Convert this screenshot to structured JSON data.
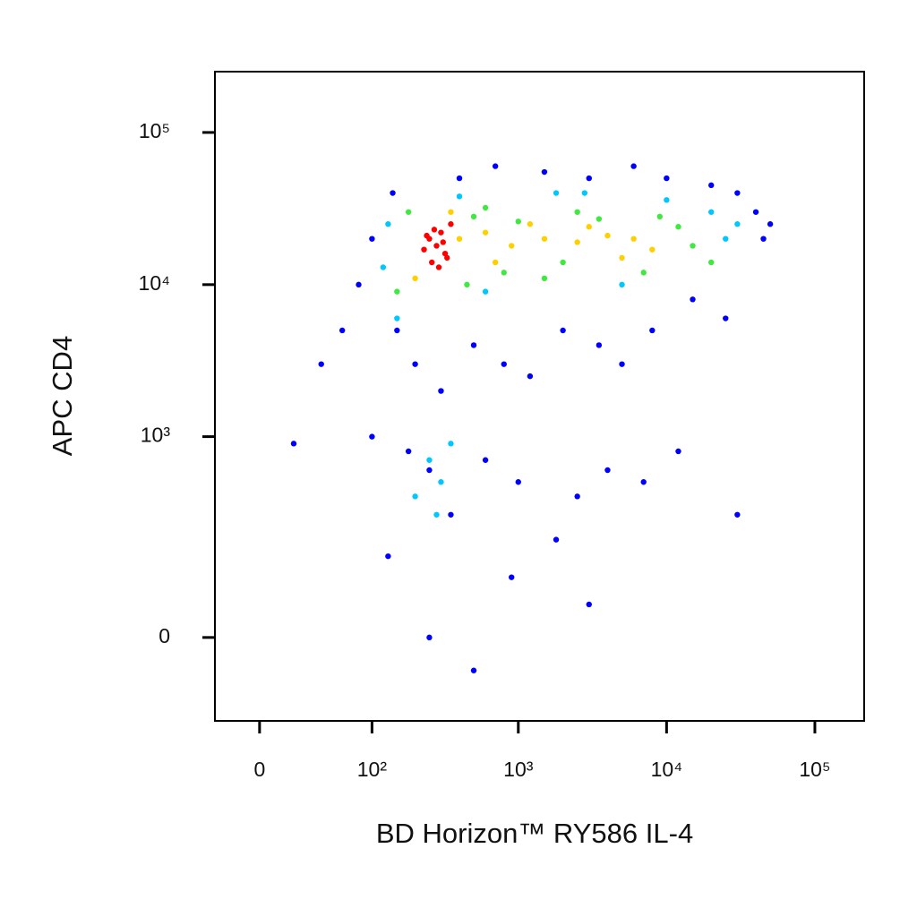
{
  "chart_data": {
    "type": "scatter",
    "x_label": "BD Horizon™ RY586 IL-4",
    "y_label": "APC CD4",
    "scale": "biexponential",
    "xlim": [
      -27,
      215000
    ],
    "ylim": [
      -156,
      251000
    ],
    "xticks": [
      0,
      {
        "value": 100,
        "label": "10²"
      },
      {
        "value": 1000,
        "label": "10³"
      },
      {
        "value": 10000,
        "label": "10⁴"
      },
      {
        "value": 100000,
        "label": "10⁵"
      }
    ],
    "yticks": [
      0,
      {
        "value": 1000,
        "label": "10³"
      },
      {
        "value": 10000,
        "label": "10⁴"
      },
      {
        "value": 100000,
        "label": "10⁵"
      }
    ],
    "series": [
      {
        "color": "#0000ff",
        "x": [
          80,
          100,
          60,
          140,
          400,
          700,
          1500,
          3000,
          6000,
          10000,
          20000,
          30000,
          40000,
          45000,
          50000,
          150,
          200,
          300,
          500,
          800,
          1200,
          2000,
          3500,
          5000,
          8000,
          15000,
          25000,
          100,
          180,
          250,
          350,
          600,
          1000,
          2500,
          4000,
          7000,
          12000,
          30000,
          40,
          20,
          900,
          1800,
          3000,
          500,
          250,
          130
        ],
        "values": [
          10000,
          20000,
          5000,
          40000,
          50000,
          60000,
          55000,
          50000,
          60000,
          50000,
          45000,
          40000,
          30000,
          20000,
          25000,
          5000,
          3000,
          2000,
          4000,
          3000,
          2500,
          5000,
          4000,
          3000,
          5000,
          8000,
          6000,
          1000,
          800,
          600,
          300,
          700,
          500,
          400,
          600,
          500,
          800,
          300,
          3000,
          900,
          100,
          200,
          50,
          -50,
          0,
          150
        ]
      },
      {
        "color": "#00c8ff",
        "x": [
          120,
          130,
          400,
          1800,
          5000,
          10000,
          25000,
          30000,
          20000,
          250,
          300,
          350,
          200,
          280,
          600,
          150,
          2800
        ],
        "values": [
          13000,
          25000,
          38000,
          40000,
          10000,
          36000,
          20000,
          25000,
          30000,
          700,
          500,
          900,
          400,
          300,
          9000,
          6000,
          40000
        ]
      },
      {
        "color": "#40e840",
        "x": [
          150,
          180,
          500,
          800,
          1000,
          2000,
          3500,
          7000,
          12000,
          15000,
          20000,
          600,
          1500,
          2500,
          9000,
          450
        ],
        "values": [
          9000,
          30000,
          28000,
          12000,
          26000,
          14000,
          27000,
          12000,
          24000,
          18000,
          14000,
          32000,
          11000,
          30000,
          28000,
          10000
        ]
      },
      {
        "color": "#ffd000",
        "x": [
          400,
          600,
          900,
          1500,
          2500,
          4000,
          6000,
          8000,
          3000,
          5000,
          200,
          350,
          700,
          1200
        ],
        "values": [
          20000,
          22000,
          18000,
          20000,
          19000,
          21000,
          20000,
          17000,
          24000,
          15000,
          11000,
          30000,
          14000,
          25000
        ]
      },
      {
        "color": "#ff0000",
        "x": [
          250,
          280,
          300,
          320,
          260,
          350,
          230,
          290,
          310,
          270,
          330,
          240
        ],
        "values": [
          20000,
          18000,
          22000,
          16000,
          14000,
          25000,
          17000,
          13000,
          19000,
          23000,
          15000,
          21000
        ]
      }
    ]
  }
}
